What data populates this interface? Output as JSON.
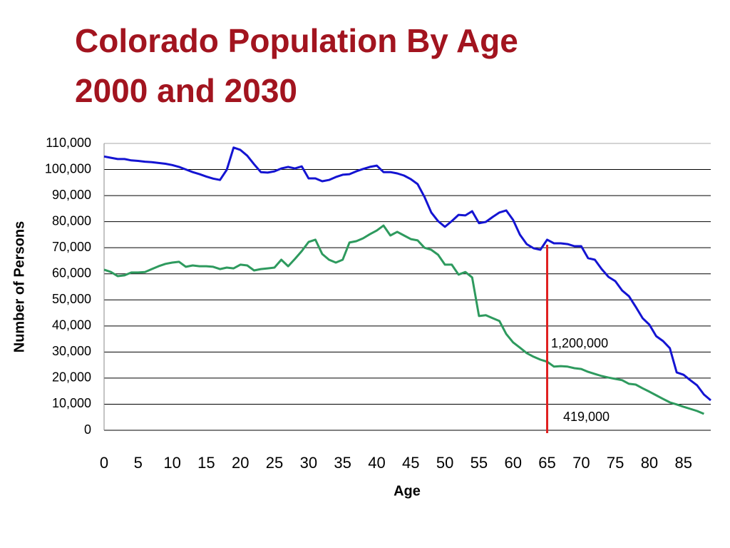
{
  "chart_data": {
    "type": "line",
    "title": "Colorado Population By Age",
    "subtitle": "2000 and 2030",
    "x_label": "Age",
    "y_label": "Number of Persons",
    "x": [
      0,
      1,
      2,
      3,
      4,
      5,
      6,
      7,
      8,
      9,
      10,
      11,
      12,
      13,
      14,
      15,
      16,
      17,
      18,
      19,
      20,
      21,
      22,
      23,
      24,
      25,
      26,
      27,
      28,
      29,
      30,
      31,
      32,
      33,
      34,
      35,
      36,
      37,
      38,
      39,
      40,
      41,
      42,
      43,
      44,
      45,
      46,
      47,
      48,
      49,
      50,
      51,
      52,
      53,
      54,
      55,
      56,
      57,
      58,
      59,
      60,
      61,
      62,
      63,
      64,
      65,
      66,
      67,
      68,
      69,
      70,
      71,
      72,
      73,
      74,
      75,
      76,
      77,
      78,
      79,
      80,
      81,
      82,
      83,
      84,
      85,
      86,
      87,
      88,
      89
    ],
    "series": [
      {
        "color": "#1414d2",
        "values": [
          105000,
          104500,
          104000,
          104000,
          103500,
          103300,
          103000,
          102800,
          102500,
          102200,
          101700,
          101000,
          100000,
          99000,
          98200,
          97300,
          96500,
          96000,
          99900,
          108400,
          107500,
          105300,
          102000,
          99000,
          98800,
          99300,
          100400,
          101000,
          100400,
          101200,
          96600,
          96600,
          95500,
          96000,
          97100,
          98000,
          98200,
          99300,
          100200,
          101000,
          101500,
          99000,
          99000,
          98500,
          97700,
          96300,
          94400,
          89500,
          83500,
          80200,
          78000,
          80200,
          82600,
          82400,
          84000,
          79400,
          79900,
          81800,
          83500,
          84300,
          80700,
          75000,
          71400,
          69800,
          69200,
          73100,
          71700,
          71700,
          71400,
          70600,
          70600,
          66000,
          65400,
          61800,
          58800,
          57200,
          53600,
          51400,
          47300,
          43000,
          40500,
          36100,
          34200,
          31500,
          22200,
          21300,
          19200,
          17200,
          13700,
          11500
        ]
      },
      {
        "color": "#2e9a5e",
        "values": [
          61600,
          60700,
          59100,
          59400,
          60500,
          60500,
          60700,
          61800,
          62900,
          63800,
          64300,
          64600,
          62700,
          63200,
          62900,
          62900,
          62700,
          61800,
          62400,
          62100,
          63500,
          63200,
          61300,
          61800,
          62100,
          62400,
          65400,
          62900,
          65700,
          68700,
          72200,
          73100,
          67600,
          65400,
          64300,
          65400,
          72000,
          72500,
          73600,
          75200,
          76600,
          78500,
          74700,
          76100,
          74700,
          73300,
          72800,
          70000,
          69200,
          67300,
          63500,
          63500,
          59700,
          60700,
          58600,
          43800,
          44100,
          43000,
          41900,
          36900,
          33700,
          31700,
          29600,
          28200,
          27100,
          26300,
          24400,
          24600,
          24400,
          23800,
          23500,
          22400,
          21600,
          20800,
          20200,
          19700,
          19200,
          17800,
          17500,
          16100,
          14800,
          13400,
          12000,
          10700,
          9900,
          9000,
          8200,
          7400,
          6300,
          null
        ]
      }
    ],
    "xlim": [
      0,
      89
    ],
    "xticks": [
      0,
      5,
      10,
      15,
      20,
      25,
      30,
      35,
      40,
      45,
      50,
      55,
      60,
      65,
      70,
      75,
      80,
      85
    ],
    "ylim": [
      0,
      110000
    ],
    "yticks": [
      0,
      {
        "value": 10000,
        "label": "10,000"
      },
      {
        "value": 20000,
        "label": "20,000"
      },
      {
        "value": 30000,
        "label": "30,000"
      },
      {
        "value": 40000,
        "label": "40,000"
      },
      {
        "value": 50000,
        "label": "50,000"
      },
      {
        "value": 60000,
        "label": "60,000"
      },
      {
        "value": 70000,
        "label": "70,000"
      },
      {
        "value": 80000,
        "label": "80,000"
      },
      {
        "value": 90000,
        "label": "90,000"
      },
      {
        "value": 100000,
        "label": "100,000"
      },
      {
        "value": 110000,
        "label": "110,000"
      }
    ],
    "grid": true,
    "marker_line": {
      "x": 65,
      "color": "#e02020"
    },
    "annotations": [
      {
        "text": "1,200,000"
      },
      {
        "text": "419,000"
      }
    ]
  }
}
